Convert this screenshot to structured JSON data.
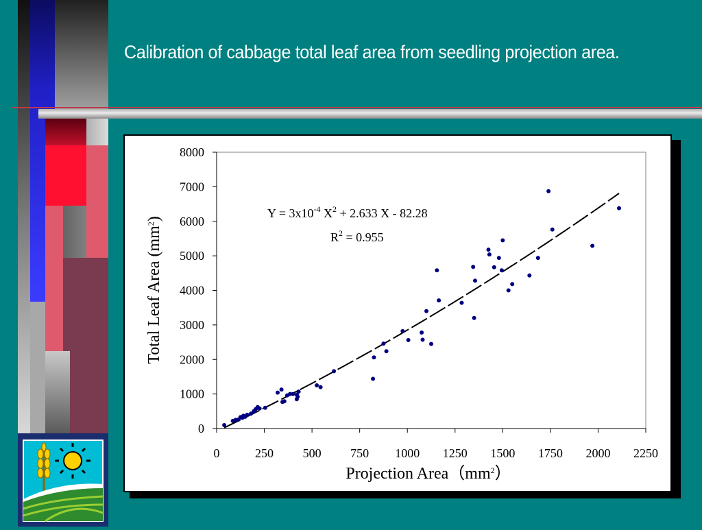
{
  "slide": {
    "title": "Calibration of cabbage total leaf area from seedling projection area."
  },
  "colors": {
    "background": "#008080",
    "points": "#000080",
    "curve": "#000000",
    "title": "#ffffff"
  },
  "logo": {
    "icons": [
      "wheat-icon",
      "sun-icon",
      "field-icon"
    ]
  },
  "chart_data": {
    "type": "scatter",
    "xlabel": "Projection Area（mm²）",
    "ylabel": "Total Leaf Area (mm²)",
    "xlim": [
      0,
      2250
    ],
    "ylim": [
      0,
      8000
    ],
    "xticks": [
      0,
      250,
      500,
      750,
      1000,
      1250,
      1500,
      1750,
      2000,
      2250
    ],
    "yticks": [
      0,
      1000,
      2000,
      3000,
      4000,
      5000,
      6000,
      7000,
      8000
    ],
    "grid": false,
    "annotations": {
      "equation": "Y = 3x10-4 X2 + 2.633 X - 82.28",
      "r_squared": "R2 = 0.955"
    },
    "fit": {
      "a": 0.0003,
      "b": 2.633,
      "c": -82.28,
      "x_range": [
        40,
        2110
      ],
      "style": "dashed"
    },
    "points": [
      [
        40,
        100
      ],
      [
        85,
        220
      ],
      [
        100,
        250
      ],
      [
        115,
        260
      ],
      [
        125,
        330
      ],
      [
        135,
        310
      ],
      [
        140,
        370
      ],
      [
        150,
        340
      ],
      [
        160,
        400
      ],
      [
        180,
        430
      ],
      [
        195,
        500
      ],
      [
        205,
        560
      ],
      [
        215,
        620
      ],
      [
        225,
        580
      ],
      [
        255,
        600
      ],
      [
        320,
        1040
      ],
      [
        340,
        1130
      ],
      [
        345,
        770
      ],
      [
        355,
        790
      ],
      [
        370,
        960
      ],
      [
        385,
        1000
      ],
      [
        400,
        1000
      ],
      [
        420,
        980
      ],
      [
        420,
        850
      ],
      [
        425,
        920
      ],
      [
        430,
        1070
      ],
      [
        525,
        1250
      ],
      [
        545,
        1200
      ],
      [
        615,
        1660
      ],
      [
        820,
        1440
      ],
      [
        825,
        2060
      ],
      [
        875,
        2460
      ],
      [
        890,
        2240
      ],
      [
        975,
        2820
      ],
      [
        1005,
        2560
      ],
      [
        1075,
        2780
      ],
      [
        1080,
        2570
      ],
      [
        1100,
        3400
      ],
      [
        1125,
        2450
      ],
      [
        1155,
        4580
      ],
      [
        1165,
        3710
      ],
      [
        1285,
        3640
      ],
      [
        1345,
        4680
      ],
      [
        1350,
        3200
      ],
      [
        1355,
        4280
      ],
      [
        1425,
        5180
      ],
      [
        1430,
        5040
      ],
      [
        1455,
        4670
      ],
      [
        1480,
        4940
      ],
      [
        1495,
        4580
      ],
      [
        1500,
        5450
      ],
      [
        1530,
        4000
      ],
      [
        1550,
        4180
      ],
      [
        1640,
        4430
      ],
      [
        1685,
        4940
      ],
      [
        1740,
        6870
      ],
      [
        1760,
        5760
      ],
      [
        1970,
        5290
      ],
      [
        2110,
        6380
      ]
    ]
  }
}
